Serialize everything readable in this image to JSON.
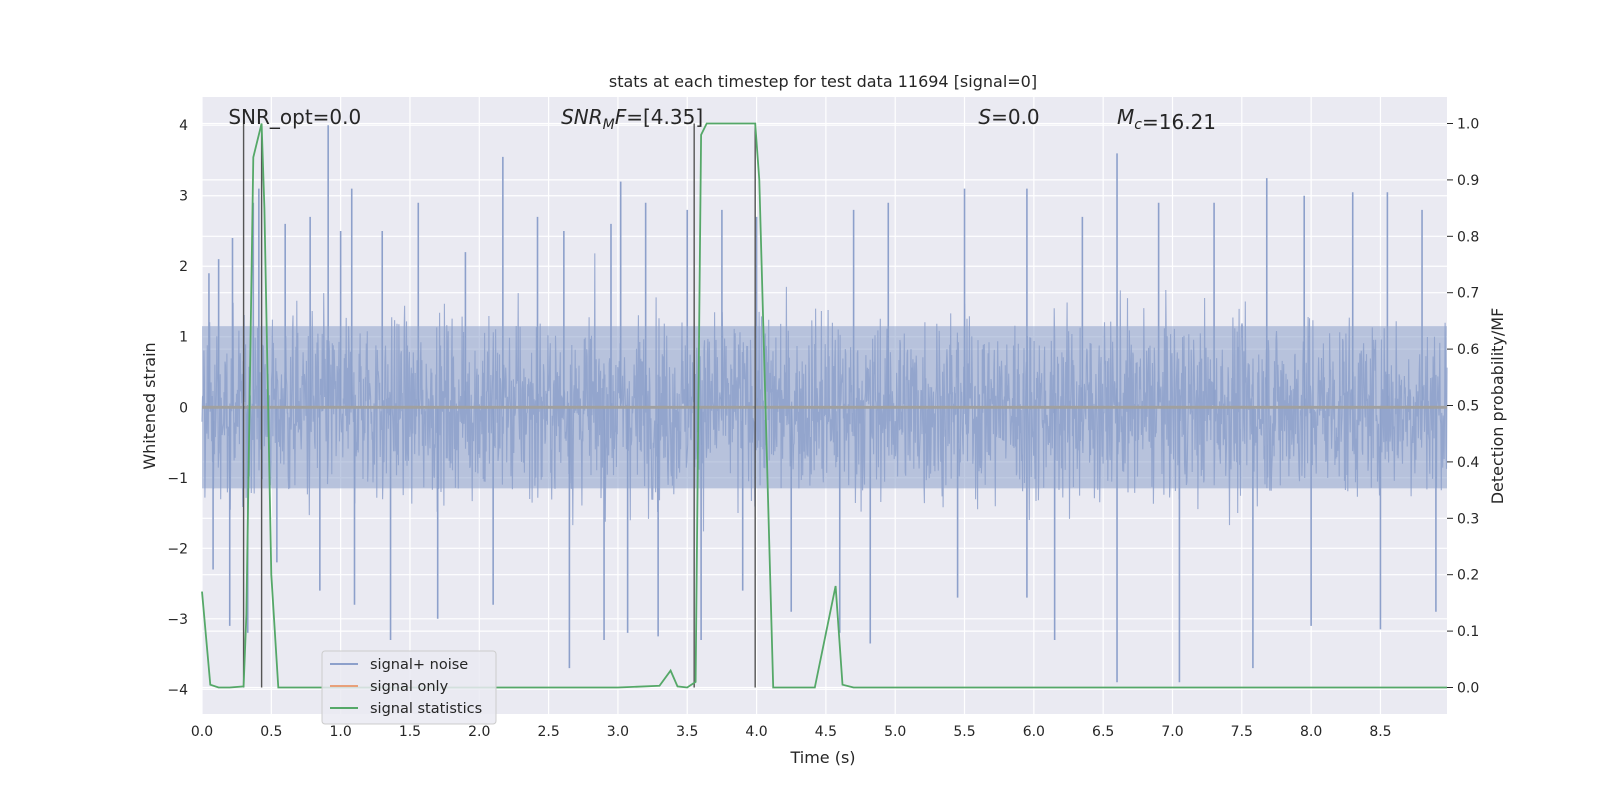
{
  "chart_data": {
    "type": "line",
    "title": "stats at each timestep for test data 11694 [signal=0]",
    "xlabel": "Time (s)",
    "ylabel_left": "Whitened strain",
    "ylabel_right": "Detection probability/MF",
    "xlim": [
      0.0,
      8.98
    ],
    "ylim_left": [
      -4.35,
      4.4
    ],
    "ylim_right": [
      -0.047,
      1.047
    ],
    "x_ticks": [
      "0.0",
      "0.5",
      "1.0",
      "1.5",
      "2.0",
      "2.5",
      "3.0",
      "3.5",
      "4.0",
      "4.5",
      "5.0",
      "5.5",
      "6.0",
      "6.5",
      "7.0",
      "7.5",
      "8.0",
      "8.5"
    ],
    "y_ticks_left": [
      "4",
      "3",
      "2",
      "1",
      "0",
      "−1",
      "−2",
      "−3",
      "−4"
    ],
    "y_ticks_right": [
      "1.0",
      "0.9",
      "0.8",
      "0.7",
      "0.6",
      "0.5",
      "0.4",
      "0.3",
      "0.2",
      "0.1",
      "0.0"
    ],
    "grid": true,
    "legend": "lower-left",
    "annotations": [
      {
        "kind": "plain",
        "text": "SNR_opt=0.0",
        "x": 0.19
      },
      {
        "kind": "sub",
        "main": "SNR",
        "sub": "M",
        "rest": "F=[4.35]",
        "x": 2.59
      },
      {
        "kind": "plain",
        "text": "S=0.0",
        "x": 5.6,
        "italic_prefix": "S"
      },
      {
        "kind": "sub",
        "main": "M",
        "sub": "c",
        "rest": "=16.21",
        "x": 6.6
      }
    ],
    "vertical_lines_x": [
      0.3,
      0.43,
      3.55,
      3.99
    ],
    "series": [
      {
        "name": "signal+ noise",
        "color": "#8da0cb",
        "axis": "left",
        "noise_amplitude": 1.5,
        "peaks": [
          {
            "x": 0.05,
            "y": 1.9
          },
          {
            "x": 0.12,
            "y": 2.1
          },
          {
            "x": 0.22,
            "y": 2.4
          },
          {
            "x": 0.37,
            "y": 2.9
          },
          {
            "x": 0.41,
            "y": 3.1
          },
          {
            "x": 0.6,
            "y": 2.6
          },
          {
            "x": 0.78,
            "y": 2.7
          },
          {
            "x": 0.91,
            "y": 4.0
          },
          {
            "x": 1.0,
            "y": 2.5
          },
          {
            "x": 1.08,
            "y": 3.1
          },
          {
            "x": 1.3,
            "y": 2.5
          },
          {
            "x": 1.56,
            "y": 2.9
          },
          {
            "x": 1.9,
            "y": 2.2
          },
          {
            "x": 2.17,
            "y": 3.55
          },
          {
            "x": 2.42,
            "y": 2.7
          },
          {
            "x": 2.61,
            "y": 2.5
          },
          {
            "x": 2.95,
            "y": 2.6
          },
          {
            "x": 3.02,
            "y": 3.2
          },
          {
            "x": 3.2,
            "y": 2.9
          },
          {
            "x": 3.5,
            "y": 2.8
          },
          {
            "x": 3.75,
            "y": 2.8
          },
          {
            "x": 4.0,
            "y": 2.7
          },
          {
            "x": 4.7,
            "y": 2.8
          },
          {
            "x": 4.95,
            "y": 2.9
          },
          {
            "x": 5.5,
            "y": 3.1
          },
          {
            "x": 5.95,
            "y": 3.1
          },
          {
            "x": 6.35,
            "y": 2.7
          },
          {
            "x": 6.6,
            "y": 3.6
          },
          {
            "x": 6.9,
            "y": 2.9
          },
          {
            "x": 7.3,
            "y": 2.9
          },
          {
            "x": 7.68,
            "y": 3.25
          },
          {
            "x": 7.95,
            "y": 3.0
          },
          {
            "x": 8.3,
            "y": 3.05
          },
          {
            "x": 8.55,
            "y": 3.05
          },
          {
            "x": 8.8,
            "y": 2.8
          }
        ],
        "troughs": [
          {
            "x": 0.08,
            "y": -2.3
          },
          {
            "x": 0.2,
            "y": -3.1
          },
          {
            "x": 0.33,
            "y": -3.2
          },
          {
            "x": 0.54,
            "y": -2.2
          },
          {
            "x": 0.85,
            "y": -2.6
          },
          {
            "x": 1.1,
            "y": -2.8
          },
          {
            "x": 1.36,
            "y": -3.3
          },
          {
            "x": 1.7,
            "y": -3.0
          },
          {
            "x": 2.1,
            "y": -2.8
          },
          {
            "x": 2.65,
            "y": -3.7
          },
          {
            "x": 2.9,
            "y": -3.3
          },
          {
            "x": 3.07,
            "y": -3.2
          },
          {
            "x": 3.29,
            "y": -3.25
          },
          {
            "x": 3.6,
            "y": -3.3
          },
          {
            "x": 3.9,
            "y": -2.6
          },
          {
            "x": 4.25,
            "y": -2.9
          },
          {
            "x": 4.6,
            "y": -3.2
          },
          {
            "x": 4.82,
            "y": -3.35
          },
          {
            "x": 5.45,
            "y": -2.7
          },
          {
            "x": 5.95,
            "y": -2.7
          },
          {
            "x": 6.15,
            "y": -3.3
          },
          {
            "x": 6.6,
            "y": -3.9
          },
          {
            "x": 7.05,
            "y": -3.9
          },
          {
            "x": 7.58,
            "y": -3.7
          },
          {
            "x": 8.0,
            "y": -3.1
          },
          {
            "x": 8.5,
            "y": -3.15
          },
          {
            "x": 8.9,
            "y": -2.9
          }
        ]
      },
      {
        "name": "signal only",
        "color": "#e8a07a",
        "axis": "left",
        "x": [
          0.0,
          8.98
        ],
        "y": [
          0.0,
          0.0
        ]
      },
      {
        "name": "signal statistics",
        "color": "#55a868",
        "axis": "right",
        "x": [
          0.0,
          0.06,
          0.12,
          0.2,
          0.3,
          0.32,
          0.37,
          0.43,
          0.45,
          0.5,
          0.55,
          0.6,
          1.0,
          2.0,
          3.0,
          3.3,
          3.38,
          3.43,
          3.5,
          3.56,
          3.6,
          3.64,
          3.7,
          3.99,
          4.02,
          4.12,
          4.2,
          4.42,
          4.57,
          4.62,
          4.7,
          5.0,
          6.0,
          7.0,
          8.0,
          8.98
        ],
        "y": [
          0.17,
          0.005,
          0.0,
          0.0,
          0.002,
          0.13,
          0.94,
          1.0,
          0.85,
          0.2,
          0.0,
          0.0,
          0.0,
          0.0,
          0.0,
          0.003,
          0.03,
          0.002,
          0.0,
          0.01,
          0.98,
          1.0,
          1.0,
          1.0,
          0.9,
          0.0,
          0.0,
          0.0,
          0.18,
          0.005,
          0.0,
          0.0,
          0.0,
          0.0,
          0.0,
          0.0
        ]
      }
    ]
  }
}
